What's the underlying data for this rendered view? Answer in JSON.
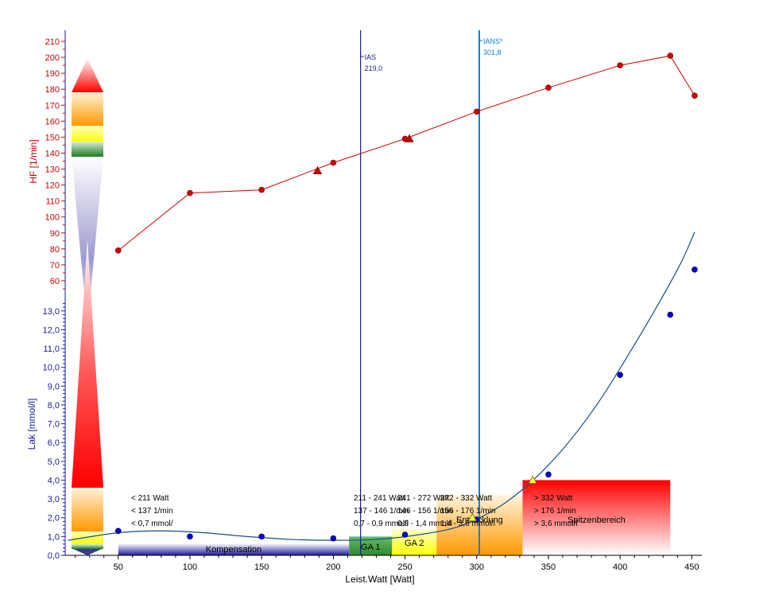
{
  "chart_data": {
    "type": "line",
    "xlabel": "Leist.Watt [Watt]",
    "x_ticks": [
      50,
      100,
      150,
      200,
      250,
      300,
      350,
      400,
      450
    ],
    "xlim": [
      13,
      457
    ],
    "hf_axis": {
      "label": "HF [1/min]",
      "ticks": [
        60,
        70,
        80,
        90,
        100,
        110,
        120,
        130,
        140,
        150,
        160,
        170,
        180,
        190,
        200,
        210
      ],
      "range": [
        53,
        214
      ],
      "color": "#cc0000"
    },
    "lak_axis": {
      "label": "Lak [mmol/l]",
      "ticks": [
        "0,0",
        "1,0",
        "2,0",
        "3,0",
        "4,0",
        "5,0",
        "6,0",
        "7,0",
        "8,0",
        "9,0",
        "10,0",
        "11,0",
        "12,0",
        "13,0"
      ],
      "range": [
        0,
        13.5
      ],
      "color": "#1a1a99"
    },
    "series": [
      {
        "axis": "hf",
        "color": "#cc0000",
        "x": [
          50,
          100,
          150,
          200,
          250,
          300,
          350,
          400,
          435,
          452
        ],
        "y": [
          79,
          115,
          117,
          134,
          149,
          166,
          181,
          195,
          201,
          176
        ]
      },
      {
        "axis": "lak",
        "color": "#0000cc",
        "x": [
          50,
          100,
          150,
          200,
          250,
          300,
          350,
          400,
          435,
          452
        ],
        "y": [
          1.3,
          1.0,
          1.0,
          0.9,
          1.1,
          1.9,
          4.3,
          9.6,
          12.8,
          15.2
        ]
      }
    ],
    "fit_curve": {
      "axis": "lak",
      "color": "#1a4d8a",
      "x": [
        15,
        50,
        80,
        110,
        140,
        170,
        200,
        230,
        260,
        290,
        320,
        350,
        380,
        410,
        440,
        452
      ],
      "y": [
        0.8,
        1.2,
        1.3,
        1.2,
        1.0,
        0.85,
        0.8,
        0.85,
        1.1,
        1.6,
        2.8,
        4.8,
        7.6,
        11.2,
        15.2,
        17.2
      ]
    },
    "hf_markers": [
      {
        "x": 189,
        "y": 129
      },
      {
        "x": 253,
        "y": 149
      }
    ],
    "lak_markers": [
      {
        "x": 297,
        "y": 2.0
      },
      {
        "x": 339,
        "y": 4.0
      }
    ],
    "thresholds": [
      {
        "name": "IAS",
        "value": "219,0",
        "x": 219,
        "color": "#1a1a99"
      },
      {
        "name": "IANS*",
        "value": "301,8",
        "x": 301.8,
        "color": "#0a7fe0"
      }
    ],
    "zones": [
      {
        "name": "Kompensation",
        "from": 50,
        "to": 211,
        "top": 0.6,
        "color": "#1a1a99",
        "info": [
          "< 211 Watt",
          "< 137 1/min",
          "< 0,7 mmol/"
        ]
      },
      {
        "name": "GA 1",
        "from": 211,
        "to": 241,
        "top": 1.0,
        "color": "#2e8b2e",
        "info": [
          "211 - 241 Watt",
          "137 - 146 1/min",
          "0,7 - 0,9 mmol/l"
        ]
      },
      {
        "name": "GA 2",
        "from": 241,
        "to": 272,
        "top": 1.4,
        "color": "#ffff00",
        "info": [
          "241 - 272 Watt",
          "146 - 156 1/min",
          "0,9 - 1,4 mmol/l"
        ]
      },
      {
        "name": "Entwicklung",
        "from": 272,
        "to": 332,
        "top": 3.2,
        "color": "#ff9900",
        "info": [
          "272 - 332 Watt",
          "156 - 176 1/min",
          "1,4 - 3,6 mmol/l"
        ]
      },
      {
        "name": "Spitzenbereich",
        "from": 332,
        "to": 435,
        "top": 4.0,
        "color": "#ff0000",
        "info": [
          "> 332 Watt",
          "> 176 1/min",
          "> 3,6 mmol/l"
        ]
      }
    ]
  }
}
